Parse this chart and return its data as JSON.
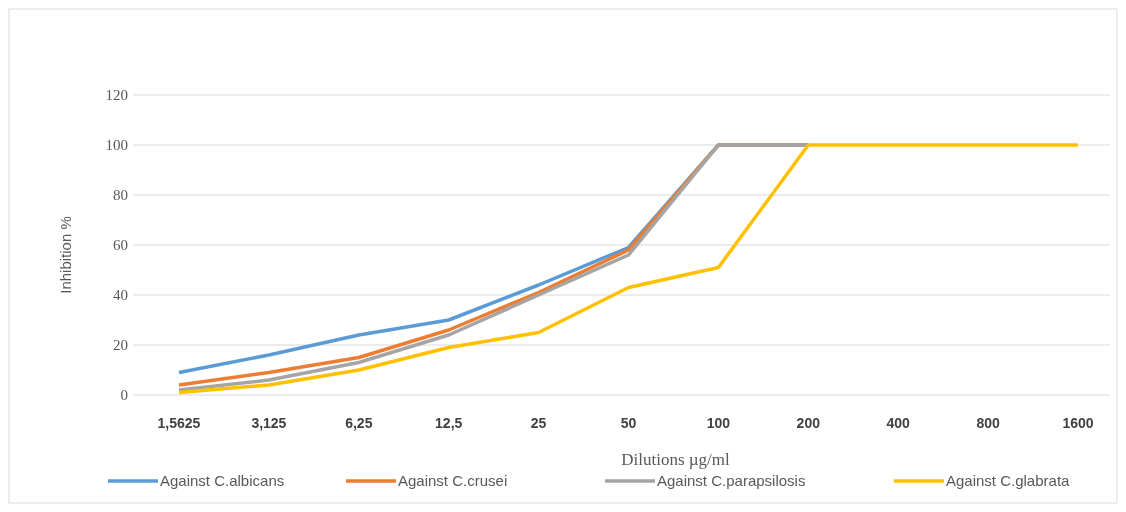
{
  "chart_data": {
    "type": "line",
    "xlabel": "Dilutions µg/ml",
    "ylabel": "Inhibition %",
    "categories": [
      "1,5625",
      "3,125",
      "6,25",
      "12,5",
      "25",
      "50",
      "100",
      "200",
      "400",
      "800",
      "1600"
    ],
    "ylim": [
      0,
      120
    ],
    "yticks": [
      0,
      20,
      40,
      60,
      80,
      100,
      120
    ],
    "grid": "y",
    "legend": "bottom",
    "marker": "none",
    "line_style": "solid",
    "series": [
      {
        "name": "Against C.albicans",
        "color": "#5b9bd5",
        "values": [
          9,
          16,
          24,
          30,
          44,
          59,
          100,
          100,
          null,
          null,
          null
        ]
      },
      {
        "name": "Against C.crusei",
        "color": "#ed7d31",
        "values": [
          4,
          9,
          15,
          26,
          41,
          58,
          100,
          100,
          null,
          null,
          null
        ]
      },
      {
        "name": "Against C.parapsilosis",
        "color": "#a5a5a5",
        "values": [
          2,
          6,
          13,
          24,
          40,
          56,
          100,
          100,
          null,
          null,
          null
        ]
      },
      {
        "name": "Against C.glabrata",
        "color": "#ffc000",
        "values": [
          1,
          4,
          10,
          19,
          25,
          43,
          51,
          100,
          100,
          100,
          100
        ]
      }
    ]
  }
}
